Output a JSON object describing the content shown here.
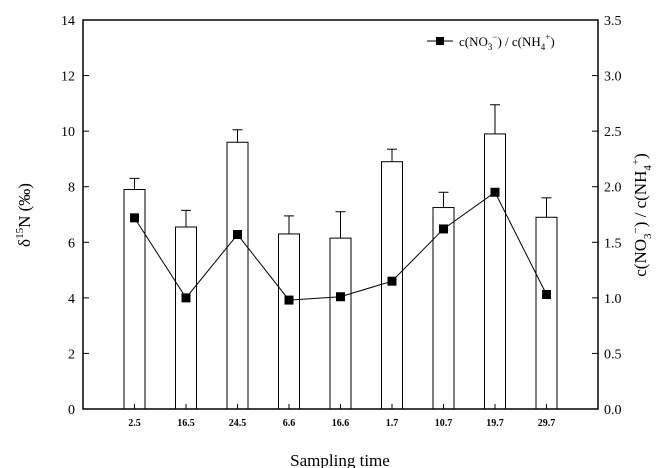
{
  "chart_data": {
    "type": "bar",
    "xlabel": "Sampling time",
    "ylabel_left": {
      "main": "δ",
      "sup": "15",
      "rest": "N (‰)"
    },
    "ylabel_right": {
      "p1": "c(NO",
      "sub1": "3",
      "sup1": "−",
      "p2": ") / c(NH",
      "sub2": "4",
      "sup2": "+",
      "p3": ")"
    },
    "categories": [
      "2.5",
      "16.5",
      "24.5",
      "6.6",
      "16.6",
      "1.7",
      "10.7",
      "19.7",
      "29.7"
    ],
    "left_axis": {
      "min": 0,
      "max": 14,
      "ticks": [
        "0",
        "2",
        "4",
        "6",
        "8",
        "10",
        "12",
        "14"
      ]
    },
    "right_axis": {
      "min": 0,
      "max": 3.5,
      "ticks": [
        "0.0",
        "0.5",
        "1.0",
        "1.5",
        "2.0",
        "2.5",
        "3.0",
        "3.5"
      ]
    },
    "series": [
      {
        "axis": "left",
        "kind": "bar",
        "values": [
          7.9,
          6.55,
          9.6,
          6.3,
          6.15,
          8.9,
          7.25,
          9.9,
          6.9
        ],
        "errors": [
          0.4,
          0.6,
          0.45,
          0.65,
          0.95,
          0.45,
          0.55,
          1.05,
          0.7
        ]
      },
      {
        "axis": "right",
        "kind": "line",
        "name": {
          "p1": "c(NO",
          "sub1": "3",
          "sup1": "−",
          "p2": ") / c(NH",
          "sub2": "4",
          "sup2": "+",
          "p3": ")"
        },
        "values": [
          1.72,
          1.0,
          1.57,
          0.98,
          1.01,
          1.15,
          1.62,
          1.95,
          1.03
        ]
      }
    ],
    "legend": "top-right",
    "grid": false
  }
}
